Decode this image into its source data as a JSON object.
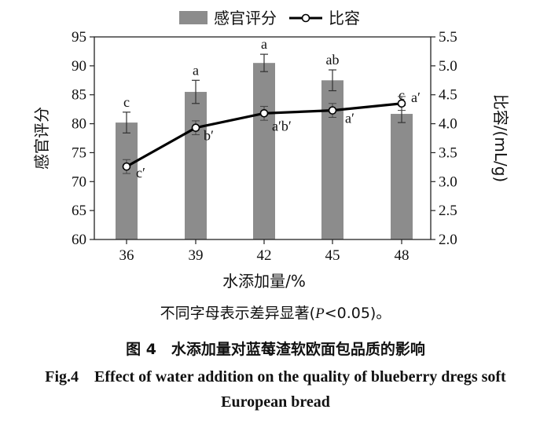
{
  "chart_data": {
    "type": "bar+line",
    "categories": [
      "36",
      "39",
      "42",
      "45",
      "48"
    ],
    "xlabel": "水添加量/%",
    "ylabel_left": "感官评分",
    "ylabel_right": "比容/(mL/g)",
    "ylim_left": [
      60,
      95
    ],
    "yticks_left": [
      "60",
      "65",
      "70",
      "75",
      "80",
      "85",
      "90",
      "95"
    ],
    "ylim_right": [
      2.0,
      5.5
    ],
    "yticks_right": [
      "2.0",
      "2.5",
      "3.0",
      "3.5",
      "4.0",
      "4.5",
      "5.0",
      "5.5"
    ],
    "legend_placement": "top",
    "series": [
      {
        "name": "感官评分",
        "kind": "bar",
        "axis": "left",
        "color": "#8c8c8c",
        "values": [
          80.2,
          85.5,
          90.5,
          87.5,
          81.7
        ],
        "errors": [
          1.8,
          2.0,
          1.5,
          1.8,
          1.5
        ],
        "labels": [
          "c",
          "a",
          "a",
          "ab",
          "c"
        ]
      },
      {
        "name": "比容",
        "kind": "line",
        "axis": "right",
        "color": "#000000",
        "values": [
          3.26,
          3.93,
          4.18,
          4.23,
          4.35
        ],
        "errors": [
          0.12,
          0.12,
          0.12,
          0.12,
          0.12
        ],
        "labels": [
          "c′",
          "b′",
          "a′b′",
          "a′",
          "a′"
        ]
      }
    ]
  },
  "note": {
    "prefix": "不同字母表示差异显著(",
    "p": "P",
    "suffix": "<0.05)。"
  },
  "caption": {
    "cn": "图 4　水添加量对蓝莓渣软欧面包品质的影响",
    "en": "Fig.4　Effect of water addition on the quality of blueberry dregs soft European bread"
  }
}
